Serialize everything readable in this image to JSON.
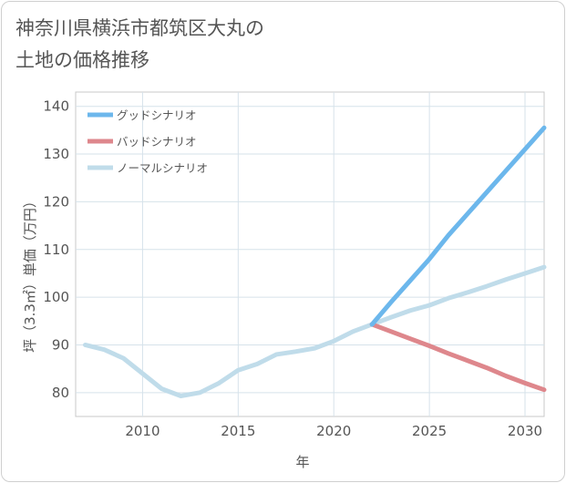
{
  "title_lines": [
    "神奈川県横浜市都筑区大丸の",
    "土地の価格推移"
  ],
  "chart_data": {
    "type": "line",
    "xlabel": "年",
    "ylabel": "坪（3.3㎡）単価（万円）",
    "xlim": [
      2006.5,
      2031
    ],
    "ylim": [
      75,
      143
    ],
    "xticks": [
      2010,
      2015,
      2020,
      2025,
      2030
    ],
    "yticks": [
      80,
      90,
      100,
      110,
      120,
      130,
      140
    ],
    "grid": true,
    "legend_position": "top-left",
    "series": [
      {
        "name": "グッドシナリオ",
        "color": "#6cb7ec",
        "x": [
          2022,
          2023,
          2024,
          2025,
          2026,
          2027,
          2028,
          2029,
          2030,
          2031
        ],
        "y": [
          94.3,
          99.0,
          103.5,
          108.0,
          113.0,
          117.5,
          122.0,
          126.5,
          131.0,
          135.5
        ]
      },
      {
        "name": "バッドシナリオ",
        "color": "#de878c",
        "x": [
          2022,
          2023,
          2024,
          2025,
          2026,
          2027,
          2028,
          2029,
          2030,
          2031
        ],
        "y": [
          94.3,
          92.8,
          91.3,
          89.8,
          88.2,
          86.7,
          85.2,
          83.5,
          82.0,
          80.6
        ]
      },
      {
        "name": "ノーマルシナリオ",
        "color": "#c0dcea",
        "x": [
          2007,
          2008,
          2009,
          2010,
          2011,
          2012,
          2013,
          2014,
          2015,
          2016,
          2017,
          2018,
          2019,
          2020,
          2021,
          2022,
          2023,
          2024,
          2025,
          2026,
          2027,
          2028,
          2029,
          2030,
          2031
        ],
        "y": [
          90.0,
          89.0,
          87.2,
          84.0,
          80.8,
          79.3,
          80.0,
          82.0,
          84.7,
          86.0,
          88.0,
          88.6,
          89.3,
          90.8,
          92.8,
          94.3,
          95.8,
          97.2,
          98.3,
          99.8,
          101.0,
          102.3,
          103.7,
          105.0,
          106.3
        ]
      }
    ]
  }
}
